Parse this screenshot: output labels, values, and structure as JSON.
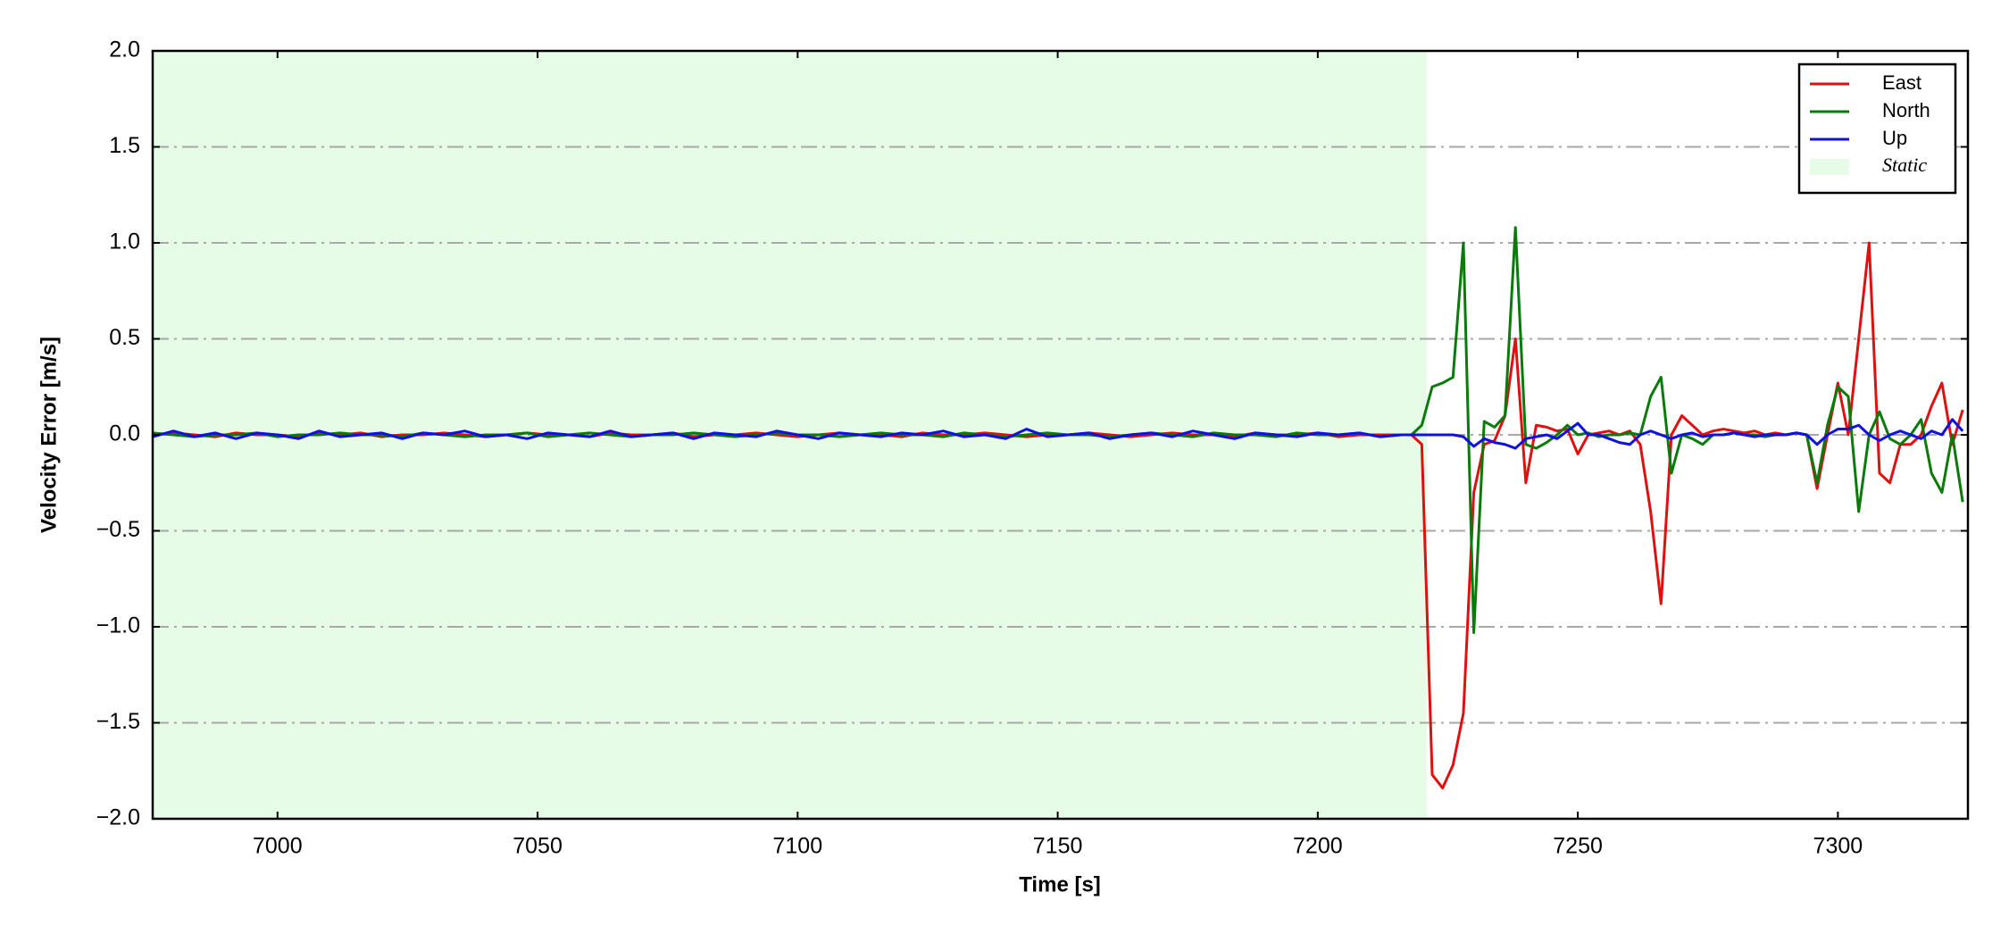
{
  "chart_data": {
    "type": "line",
    "xlabel": "Time [s]",
    "ylabel": "Velocity Error [m/s]",
    "xlim": [
      6976,
      7325
    ],
    "ylim": [
      -2.0,
      2.0
    ],
    "xticks": [
      7000,
      7050,
      7100,
      7150,
      7200,
      7250,
      7300
    ],
    "yticks": [
      {
        "value": -2.0,
        "label": "−2.0"
      },
      {
        "value": -1.5,
        "label": "−1.5"
      },
      {
        "value": -1.0,
        "label": "−1.0"
      },
      {
        "value": -0.5,
        "label": "−0.5"
      },
      {
        "value": 0.0,
        "label": "0.0"
      },
      0.5,
      {
        "value": 1.0,
        "label": "1.0"
      },
      1.5,
      {
        "value": 2.0,
        "label": "2.0"
      }
    ],
    "grid": true,
    "legend": "upper right",
    "static": {
      "name": "Static",
      "color": "#e6fce6",
      "span": [
        6976,
        7221
      ]
    },
    "x": [
      6976,
      6980,
      6984,
      6988,
      6992,
      6996,
      7000,
      7004,
      7008,
      7012,
      7016,
      7020,
      7024,
      7028,
      7032,
      7036,
      7040,
      7044,
      7048,
      7052,
      7056,
      7060,
      7064,
      7068,
      7072,
      7076,
      7080,
      7084,
      7088,
      7092,
      7096,
      7100,
      7104,
      7108,
      7112,
      7116,
      7120,
      7124,
      7128,
      7132,
      7136,
      7140,
      7144,
      7148,
      7152,
      7156,
      7160,
      7164,
      7168,
      7172,
      7176,
      7180,
      7184,
      7188,
      7192,
      7196,
      7200,
      7204,
      7208,
      7212,
      7216,
      7218,
      7220,
      7222,
      7224,
      7226,
      7228,
      7230,
      7232,
      7234,
      7236,
      7238,
      7240,
      7242,
      7244,
      7246,
      7248,
      7250,
      7252,
      7254,
      7256,
      7258,
      7260,
      7262,
      7264,
      7266,
      7268,
      7270,
      7272,
      7274,
      7276,
      7278,
      7280,
      7282,
      7284,
      7286,
      7288,
      7290,
      7292,
      7294,
      7296,
      7298,
      7300,
      7302,
      7304,
      7306,
      7308,
      7310,
      7312,
      7314,
      7316,
      7318,
      7320,
      7322,
      7324
    ],
    "series": [
      {
        "name": "East",
        "color": "#e01010",
        "values": [
          0.0,
          0.01,
          0.0,
          -0.01,
          0.01,
          0.0,
          0.0,
          -0.01,
          0.01,
          0.0,
          0.01,
          -0.01,
          0.0,
          0.0,
          0.01,
          0.0,
          -0.01,
          0.0,
          0.01,
          0.0,
          0.0,
          -0.01,
          0.01,
          0.0,
          0.0,
          0.01,
          -0.01,
          0.0,
          0.0,
          0.01,
          0.0,
          -0.01,
          0.0,
          0.01,
          0.0,
          0.0,
          -0.01,
          0.01,
          0.0,
          0.0,
          0.01,
          0.0,
          -0.01,
          0.0,
          0.0,
          0.01,
          0.0,
          -0.01,
          0.0,
          0.01,
          0.0,
          0.0,
          -0.01,
          0.01,
          0.0,
          0.0,
          0.01,
          -0.01,
          0.0,
          0.0,
          0.0,
          0.0,
          -0.05,
          -1.77,
          -1.84,
          -1.72,
          -1.45,
          -0.3,
          -0.05,
          -0.03,
          0.1,
          0.5,
          -0.25,
          0.05,
          0.04,
          0.02,
          0.03,
          -0.1,
          0.0,
          0.01,
          0.02,
          0.0,
          0.02,
          -0.05,
          -0.4,
          -0.88,
          0.0,
          0.1,
          0.05,
          0.0,
          0.02,
          0.03,
          0.02,
          0.01,
          0.02,
          0.0,
          0.01,
          0.0,
          0.01,
          0.0,
          -0.28,
          0.0,
          0.27,
          0.0,
          0.5,
          1.0,
          -0.2,
          -0.25,
          -0.05,
          -0.05,
          0.0,
          0.15,
          0.27,
          -0.05,
          0.13
        ]
      },
      {
        "name": "North",
        "color": "#0a7a0a",
        "values": [
          0.01,
          0.0,
          -0.01,
          0.0,
          0.0,
          0.01,
          -0.01,
          0.0,
          0.0,
          0.01,
          0.0,
          0.0,
          -0.01,
          0.01,
          0.0,
          -0.01,
          0.0,
          0.0,
          0.01,
          -0.01,
          0.0,
          0.01,
          0.0,
          -0.01,
          0.0,
          0.0,
          0.01,
          0.0,
          -0.01,
          0.0,
          0.01,
          0.0,
          0.0,
          -0.01,
          0.0,
          0.01,
          0.0,
          0.0,
          -0.01,
          0.01,
          0.0,
          -0.01,
          0.0,
          0.01,
          0.0,
          0.0,
          -0.01,
          0.0,
          0.01,
          0.0,
          -0.01,
          0.01,
          0.0,
          0.0,
          -0.01,
          0.01,
          0.0,
          0.0,
          0.01,
          -0.01,
          0.0,
          0.0,
          0.05,
          0.25,
          0.27,
          0.3,
          1.0,
          -1.03,
          0.07,
          0.04,
          0.1,
          1.08,
          -0.05,
          -0.07,
          -0.04,
          0.0,
          0.05,
          0.0,
          0.01,
          -0.01,
          0.0,
          0.0,
          0.01,
          0.0,
          0.2,
          0.3,
          -0.2,
          0.0,
          -0.02,
          -0.05,
          0.0,
          0.0,
          0.01,
          0.0,
          0.0,
          -0.01,
          0.0,
          0.0,
          0.01,
          0.0,
          -0.25,
          0.05,
          0.25,
          0.2,
          -0.4,
          0.0,
          0.12,
          -0.02,
          -0.05,
          0.0,
          0.08,
          -0.2,
          -0.3,
          0.0,
          -0.35
        ]
      },
      {
        "name": "Up",
        "color": "#1010e0",
        "values": [
          -0.01,
          0.02,
          -0.01,
          0.01,
          -0.02,
          0.01,
          0.0,
          -0.02,
          0.02,
          -0.01,
          0.0,
          0.01,
          -0.02,
          0.01,
          0.0,
          0.02,
          -0.01,
          0.0,
          -0.02,
          0.01,
          0.0,
          -0.01,
          0.02,
          -0.01,
          0.0,
          0.01,
          -0.02,
          0.01,
          0.0,
          -0.01,
          0.02,
          0.0,
          -0.02,
          0.01,
          0.0,
          -0.01,
          0.01,
          0.0,
          0.02,
          -0.01,
          0.0,
          -0.02,
          0.03,
          -0.01,
          0.0,
          0.01,
          -0.02,
          0.0,
          0.01,
          -0.01,
          0.02,
          0.0,
          -0.02,
          0.01,
          0.0,
          -0.01,
          0.01,
          0.0,
          0.01,
          -0.01,
          0.0,
          0.0,
          0.0,
          0.0,
          0.0,
          0.0,
          -0.01,
          -0.06,
          -0.02,
          -0.04,
          -0.05,
          -0.07,
          -0.02,
          -0.01,
          0.0,
          -0.02,
          0.02,
          0.06,
          0.0,
          0.0,
          -0.02,
          -0.04,
          -0.05,
          0.0,
          0.02,
          0.0,
          -0.02,
          0.0,
          0.01,
          -0.01,
          0.0,
          0.0,
          0.01,
          0.0,
          -0.01,
          0.0,
          0.0,
          0.0,
          0.01,
          0.0,
          -0.05,
          0.0,
          0.03,
          0.03,
          0.05,
          0.0,
          -0.03,
          0.0,
          0.02,
          0.0,
          -0.02,
          0.02,
          0.0,
          0.08,
          0.02
        ]
      }
    ]
  }
}
